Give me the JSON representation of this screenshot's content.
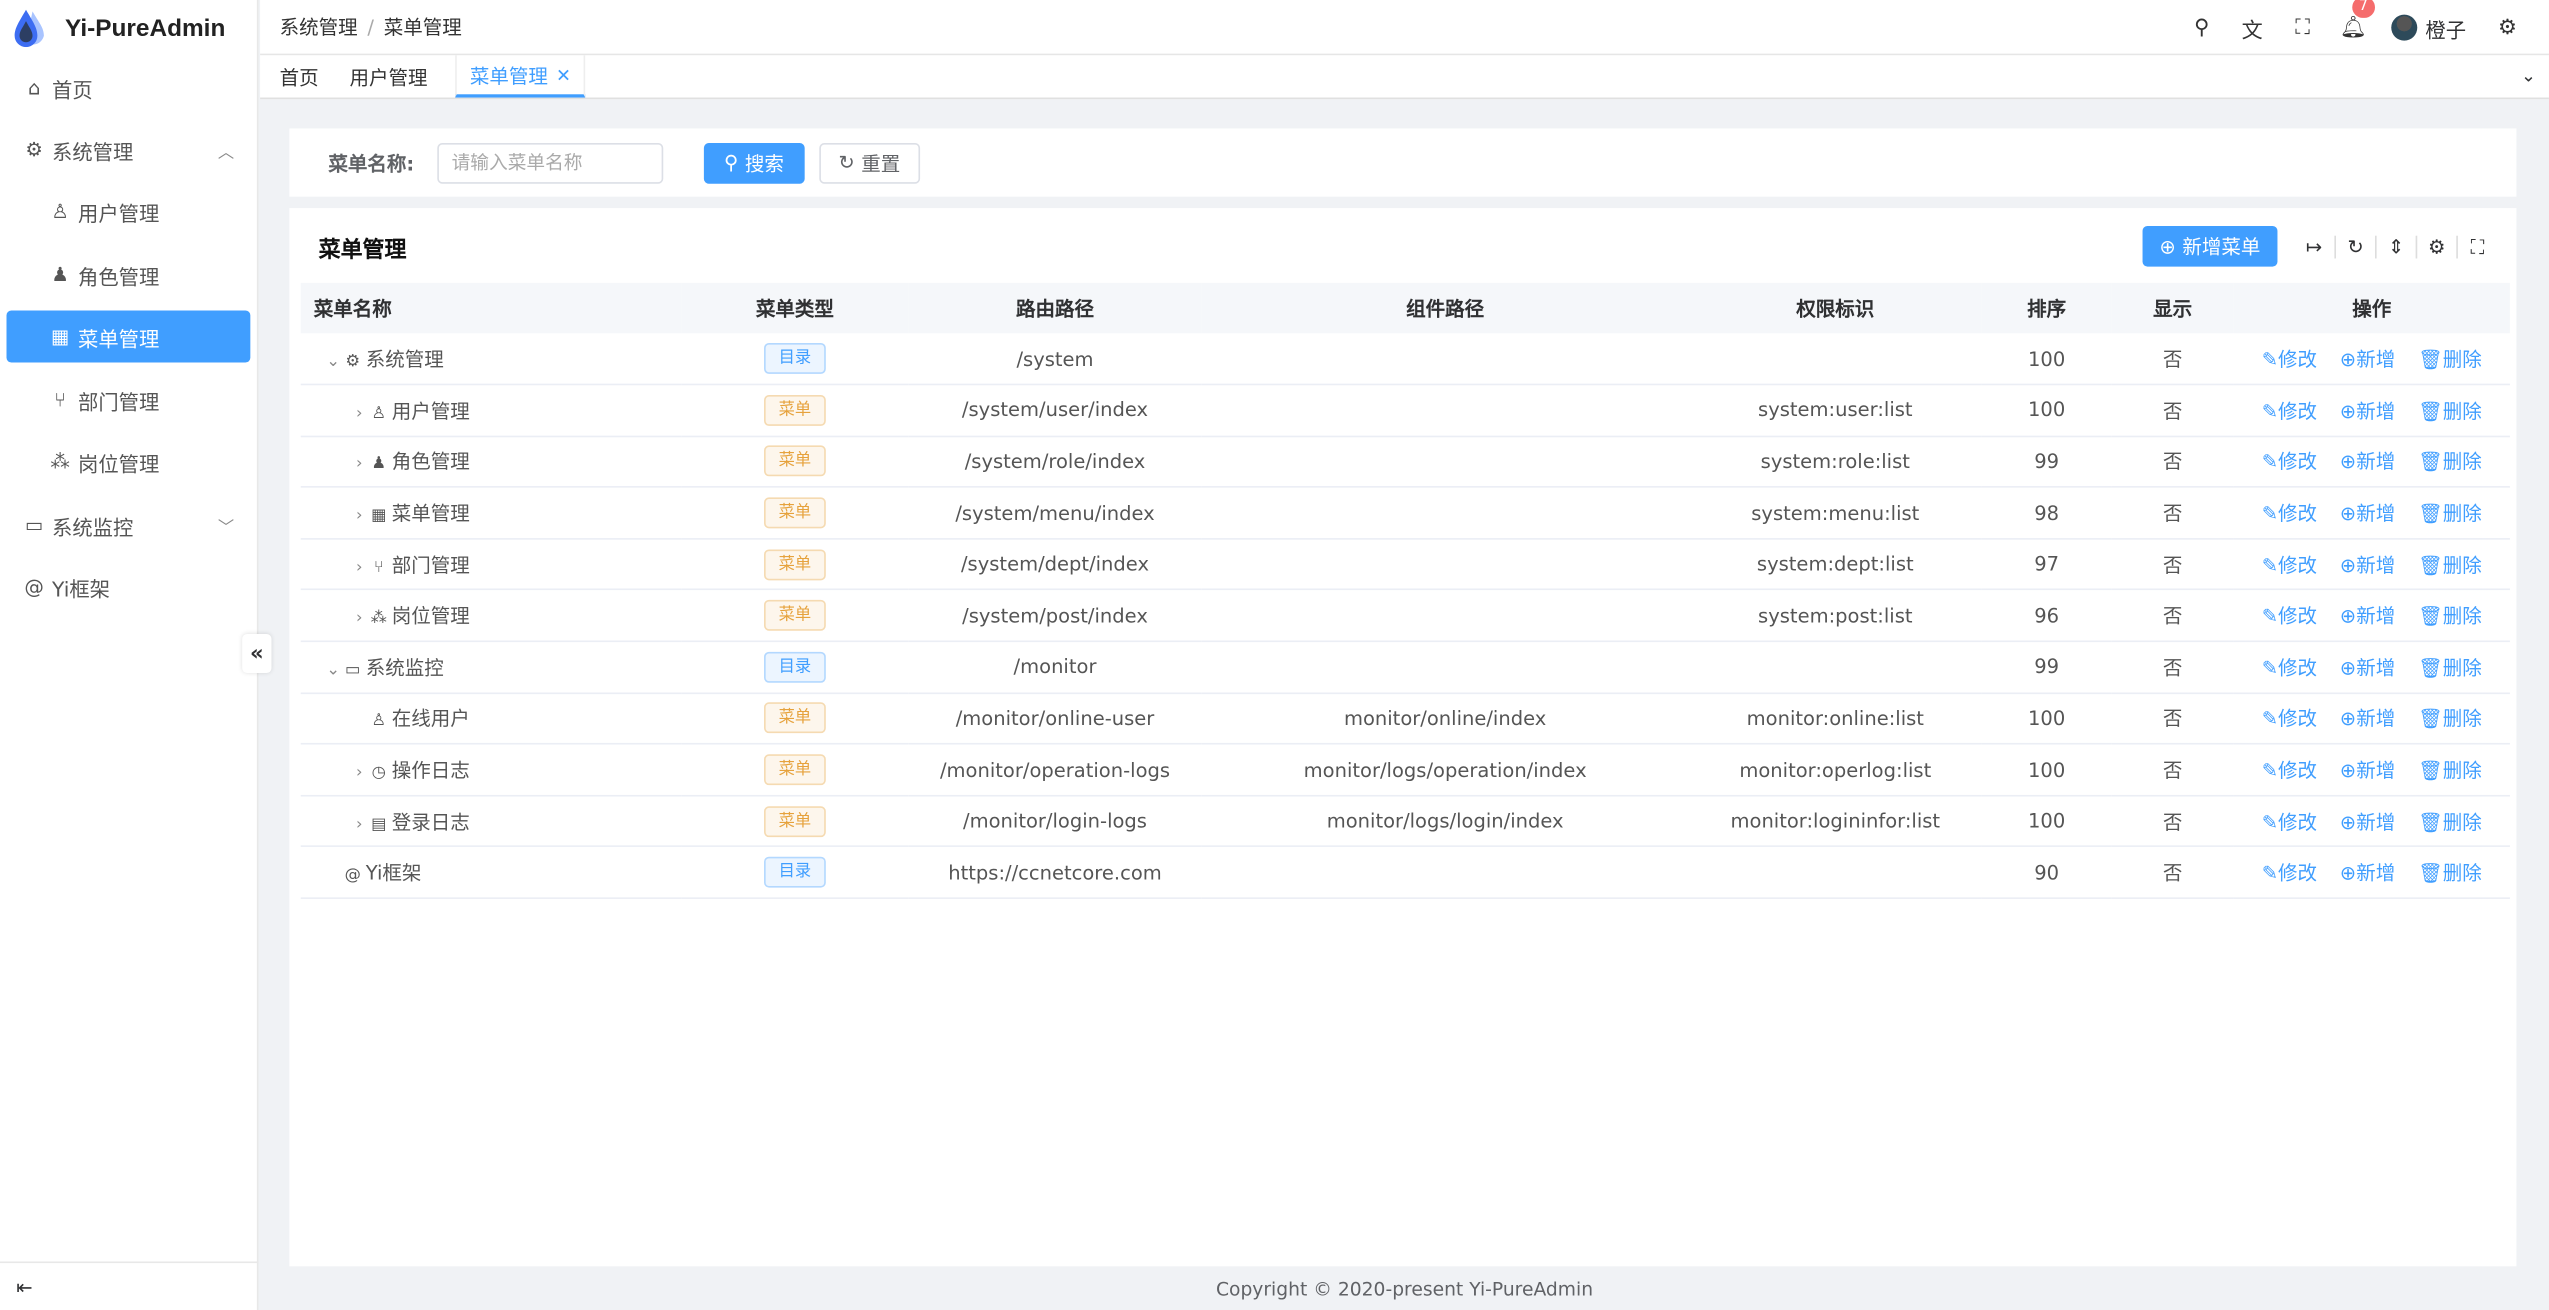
{
  "app": {
    "title": "Yi-PureAdmin",
    "accent": "#409eff"
  },
  "sidebar": {
    "items": [
      {
        "label": "首页",
        "icon": "home-icon",
        "glyph": "⌂"
      },
      {
        "label": "系统管理",
        "icon": "gear-icon",
        "glyph": "⚙",
        "expanded": true
      },
      {
        "label": "用户管理",
        "icon": "user-lock-icon",
        "glyph": "♙"
      },
      {
        "label": "角色管理",
        "icon": "user-role-icon",
        "glyph": "♟"
      },
      {
        "label": "菜单管理",
        "icon": "grid-icon",
        "glyph": "▦",
        "active": true
      },
      {
        "label": "部门管理",
        "icon": "branch-icon",
        "glyph": "⑂"
      },
      {
        "label": "岗位管理",
        "icon": "network-icon",
        "glyph": "⁂"
      },
      {
        "label": "系统监控",
        "icon": "monitor-icon",
        "glyph": "▭",
        "expanded": false
      },
      {
        "label": "Yi框架",
        "icon": "at-icon",
        "glyph": "@"
      }
    ],
    "collapse_glyph": "«",
    "toggle_glyph": "⇤"
  },
  "header": {
    "breadcrumb": [
      "系统管理",
      "菜单管理"
    ],
    "breadcrumb_sep": "/",
    "notifications": "7",
    "user": "橙子"
  },
  "tabs": [
    {
      "label": "首页"
    },
    {
      "label": "用户管理"
    },
    {
      "label": "菜单管理",
      "active": true
    }
  ],
  "search": {
    "label": "菜单名称:",
    "placeholder": "请输入菜单名称",
    "search_btn": "搜索",
    "reset_btn": "重置"
  },
  "table": {
    "title": "菜单管理",
    "add_btn": "新增菜单",
    "columns": [
      "菜单名称",
      "菜单类型",
      "路由路径",
      "组件路径",
      "权限标识",
      "排序",
      "显示",
      "操作"
    ],
    "actions": {
      "edit": "修改",
      "add": "新增",
      "delete": "删除"
    },
    "rows": [
      {
        "name": "系统管理",
        "icon": "⚙",
        "level": 0,
        "expand": "⌄",
        "type": "目录",
        "kind": "dir",
        "route": "/system",
        "component": "",
        "perm": "",
        "sort": "100",
        "show": "否"
      },
      {
        "name": "用户管理",
        "icon": "♙",
        "level": 1,
        "expand": "›",
        "type": "菜单",
        "kind": "menu",
        "route": "/system/user/index",
        "component": "",
        "perm": "system:user:list",
        "sort": "100",
        "show": "否"
      },
      {
        "name": "角色管理",
        "icon": "♟",
        "level": 1,
        "expand": "›",
        "type": "菜单",
        "kind": "menu",
        "route": "/system/role/index",
        "component": "",
        "perm": "system:role:list",
        "sort": "99",
        "show": "否"
      },
      {
        "name": "菜单管理",
        "icon": "▦",
        "level": 1,
        "expand": "›",
        "type": "菜单",
        "kind": "menu",
        "route": "/system/menu/index",
        "component": "",
        "perm": "system:menu:list",
        "sort": "98",
        "show": "否"
      },
      {
        "name": "部门管理",
        "icon": "⑂",
        "level": 1,
        "expand": "›",
        "type": "菜单",
        "kind": "menu",
        "route": "/system/dept/index",
        "component": "",
        "perm": "system:dept:list",
        "sort": "97",
        "show": "否"
      },
      {
        "name": "岗位管理",
        "icon": "⁂",
        "level": 1,
        "expand": "›",
        "type": "菜单",
        "kind": "menu",
        "route": "/system/post/index",
        "component": "",
        "perm": "system:post:list",
        "sort": "96",
        "show": "否"
      },
      {
        "name": "系统监控",
        "icon": "▭",
        "level": 0,
        "expand": "⌄",
        "type": "目录",
        "kind": "dir",
        "route": "/monitor",
        "component": "",
        "perm": "",
        "sort": "99",
        "show": "否"
      },
      {
        "name": "在线用户",
        "icon": "♙",
        "level": 1,
        "expand": "",
        "type": "菜单",
        "kind": "menu",
        "route": "/monitor/online-user",
        "component": "monitor/online/index",
        "perm": "monitor:online:list",
        "sort": "100",
        "show": "否"
      },
      {
        "name": "操作日志",
        "icon": "◷",
        "level": 1,
        "expand": "›",
        "type": "菜单",
        "kind": "menu",
        "route": "/monitor/operation-logs",
        "component": "monitor/logs/operation/index",
        "perm": "monitor:operlog:list",
        "sort": "100",
        "show": "否"
      },
      {
        "name": "登录日志",
        "icon": "▤",
        "level": 1,
        "expand": "›",
        "type": "菜单",
        "kind": "menu",
        "route": "/monitor/login-logs",
        "component": "monitor/logs/login/index",
        "perm": "monitor:logininfor:list",
        "sort": "100",
        "show": "否"
      },
      {
        "name": "Yi框架",
        "icon": "@",
        "level": 0,
        "expand": "",
        "type": "目录",
        "kind": "dir",
        "route": "https://ccnetcore.com",
        "component": "",
        "perm": "",
        "sort": "90",
        "show": "否"
      }
    ]
  },
  "footer": "Copyright © 2020-present Yi-PureAdmin"
}
